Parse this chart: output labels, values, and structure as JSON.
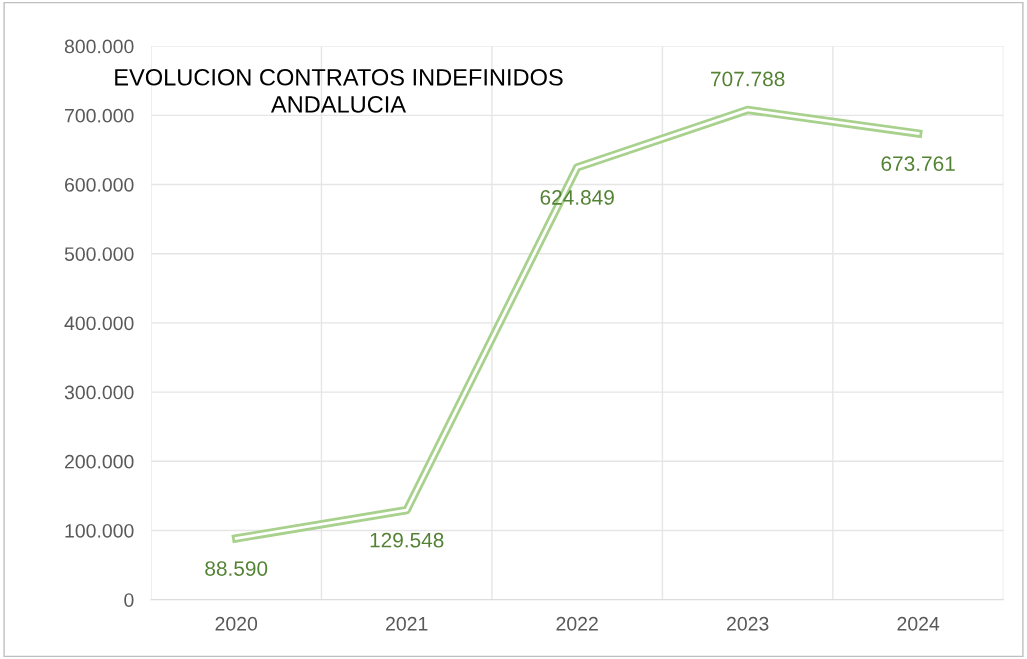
{
  "chart_data": {
    "type": "line",
    "title": "EVOLUCION CONTRATOS INDEFINIDOS\nANDALUCIA",
    "categories": [
      "2020",
      "2021",
      "2022",
      "2023",
      "2024"
    ],
    "series": [
      {
        "color": "#a9d18e",
        "values": [
          88590,
          129548,
          624849,
          707788,
          673761
        ],
        "value_labels": [
          "88.590",
          "129.548",
          "624.849",
          "707.788",
          "673.761"
        ]
      }
    ],
    "ylim": [
      0,
      800000
    ],
    "yticks": [
      {
        "value": 0,
        "label": "0"
      },
      {
        "value": 100000,
        "label": "100.000"
      },
      {
        "value": 200000,
        "label": "200.000"
      },
      {
        "value": 300000,
        "label": "300.000"
      },
      {
        "value": 400000,
        "label": "400.000"
      },
      {
        "value": 500000,
        "label": "500.000"
      },
      {
        "value": 600000,
        "label": "600.000"
      },
      {
        "value": 700000,
        "label": "700.000"
      },
      {
        "value": 800000,
        "label": "800.000"
      }
    ],
    "grid": true,
    "marker": "none",
    "line_style": "solid"
  }
}
